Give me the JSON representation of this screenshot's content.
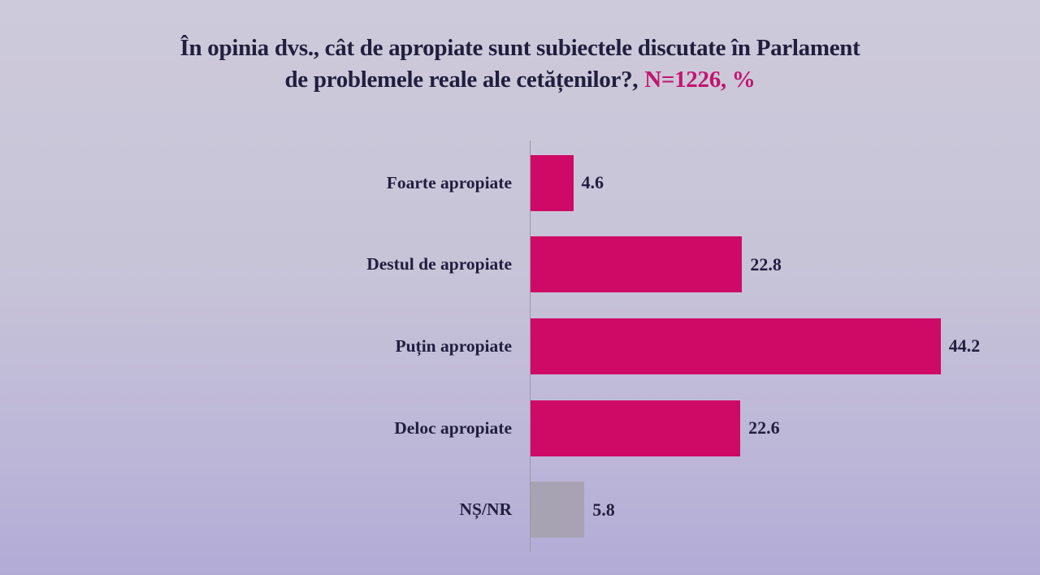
{
  "title": {
    "line1": "În opinia dvs., cât de apropiate sunt subiectele discutate în Parlament",
    "line2_text": "de problemele reale ale cetățenilor?,",
    "line2_accent": "N=1226, %"
  },
  "colors": {
    "background_top": "#cdcadb",
    "background_bottom": "#b2abd6",
    "title_text": "#211e3e",
    "accent_magenta": "#c2156e",
    "bar_pink": "#ce0a66",
    "bar_gray": "#a8a3b3",
    "axis_line": "#9a96ae"
  },
  "chart_data": {
    "type": "bar",
    "orientation": "horizontal",
    "title": "În opinia dvs., cât de apropiate sunt subiectele discutate în Parlament de problemele reale ale cetățenilor?, N=1226, %",
    "sample_size": "N=1226",
    "unit": "%",
    "categories": [
      "Foarte apropiate",
      "Destul de apropiate",
      "Puțin apropiate",
      "Deloc apropiate",
      "NȘ/NR"
    ],
    "values": [
      4.6,
      22.8,
      44.2,
      22.6,
      5.8
    ],
    "value_labels": [
      "4.6",
      "22.8",
      "44.2",
      "22.6",
      "5.8"
    ],
    "bar_colors": [
      "#ce0a66",
      "#ce0a66",
      "#ce0a66",
      "#ce0a66",
      "#a8a3b3"
    ],
    "xlim": [
      0,
      45
    ],
    "grid": false,
    "legend": "none",
    "value_label_position": "right-of-bar"
  }
}
